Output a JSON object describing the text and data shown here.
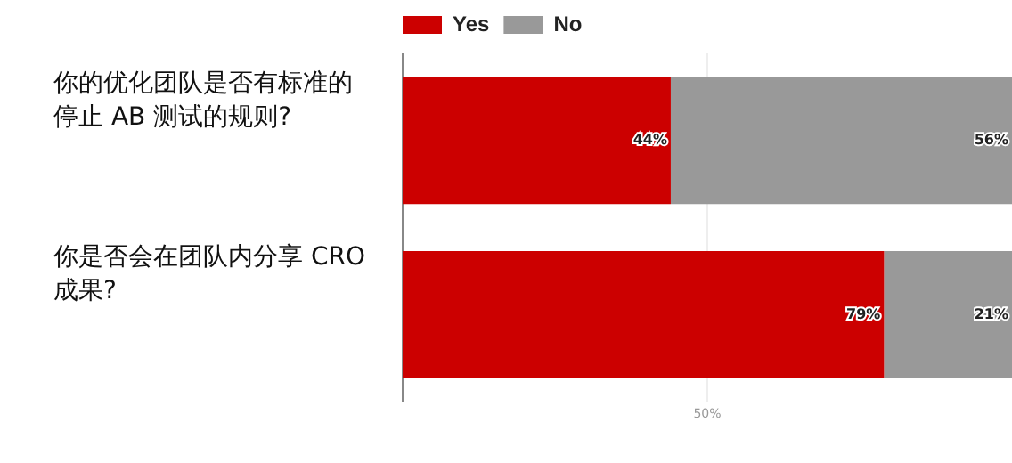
{
  "chart_data": {
    "type": "bar",
    "orientation": "horizontal",
    "stacked": true,
    "categories": [
      "你的优化团队是否有标准的停止 AB 测试的规则?",
      "你是否会在团队内分享 CRO 成果?"
    ],
    "series": [
      {
        "name": "Yes",
        "color": "#cc0000",
        "values": [
          44,
          79
        ],
        "value_labels": [
          "44%",
          "79%"
        ]
      },
      {
        "name": "No",
        "color": "#999999",
        "values": [
          56,
          21
        ],
        "value_labels": [
          "56%",
          "21%"
        ]
      }
    ],
    "xlim": [
      0,
      100
    ],
    "xticks": [
      {
        "value": 50,
        "label": "50%"
      }
    ],
    "grid": "x",
    "legend": "top left"
  }
}
